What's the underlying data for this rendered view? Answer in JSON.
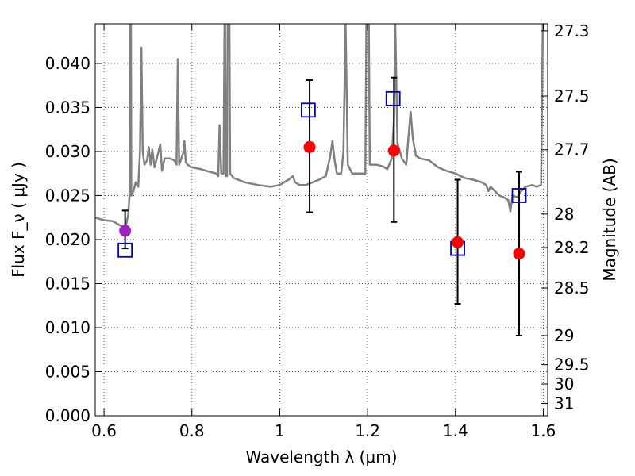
{
  "chart_data": {
    "type": "scatter",
    "xlabel": "Wavelength  λ (μm)",
    "ylabel": "Flux  F_ν  ( μJy )",
    "ylabel_right": "Magnitude (AB)",
    "xlim": [
      0.58,
      1.61
    ],
    "ylim": [
      0.0,
      0.0445
    ],
    "xticks": [
      0.6,
      0.8,
      1.0,
      1.2,
      1.4,
      1.6
    ],
    "xtick_labels": [
      "0.6",
      "0.8",
      "1",
      "1.2",
      "1.4",
      "1.6"
    ],
    "yticks": [
      0.0,
      0.005,
      0.01,
      0.015,
      0.02,
      0.025,
      0.03,
      0.035,
      0.04
    ],
    "ytick_labels": [
      "0.000",
      "0.005",
      "0.010",
      "0.015",
      "0.020",
      "0.025",
      "0.030",
      "0.035",
      "0.040"
    ],
    "right_ticks": [
      {
        "label": "27.3",
        "flux": 0.0437
      },
      {
        "label": "27.5",
        "flux": 0.0363
      },
      {
        "label": "27.7",
        "flux": 0.0302
      },
      {
        "label": "28",
        "flux": 0.0229
      },
      {
        "label": "28.2",
        "flux": 0.0191
      },
      {
        "label": "28.5",
        "flux": 0.0145
      },
      {
        "label": "29",
        "flux": 0.0091
      },
      {
        "label": "29.5",
        "flux": 0.0058
      },
      {
        "label": "30",
        "flux": 0.0036
      },
      {
        "label": "31",
        "flux": 0.0014
      }
    ],
    "grid": true,
    "series": [
      {
        "kind": "line",
        "color": "#808080",
        "points": [
          [
            0.58,
            0.0225
          ],
          [
            0.6,
            0.0222
          ],
          [
            0.62,
            0.0221
          ],
          [
            0.64,
            0.0215
          ],
          [
            0.645,
            0.0212
          ],
          [
            0.65,
            0.0216
          ],
          [
            0.655,
            0.0228
          ],
          [
            0.658,
            0.025
          ],
          [
            0.659,
            0.05
          ],
          [
            0.661,
            0.05
          ],
          [
            0.662,
            0.025
          ],
          [
            0.667,
            0.0255
          ],
          [
            0.672,
            0.0265
          ],
          [
            0.678,
            0.026
          ],
          [
            0.682,
            0.03
          ],
          [
            0.685,
            0.0418
          ],
          [
            0.688,
            0.03
          ],
          [
            0.692,
            0.0285
          ],
          [
            0.698,
            0.029
          ],
          [
            0.702,
            0.0305
          ],
          [
            0.706,
            0.0285
          ],
          [
            0.71,
            0.0302
          ],
          [
            0.715,
            0.0282
          ],
          [
            0.72,
            0.0292
          ],
          [
            0.725,
            0.0302
          ],
          [
            0.728,
            0.0308
          ],
          [
            0.732,
            0.0278
          ],
          [
            0.738,
            0.0292
          ],
          [
            0.75,
            0.0292
          ],
          [
            0.76,
            0.029
          ],
          [
            0.765,
            0.0285
          ],
          [
            0.768,
            0.0405
          ],
          [
            0.771,
            0.0285
          ],
          [
            0.776,
            0.0292
          ],
          [
            0.78,
            0.0298
          ],
          [
            0.783,
            0.0312
          ],
          [
            0.786,
            0.0288
          ],
          [
            0.79,
            0.0285
          ],
          [
            0.8,
            0.0282
          ],
          [
            0.82,
            0.028
          ],
          [
            0.84,
            0.0277
          ],
          [
            0.855,
            0.0275
          ],
          [
            0.86,
            0.0272
          ],
          [
            0.863,
            0.033
          ],
          [
            0.867,
            0.0275
          ],
          [
            0.872,
            0.0275
          ],
          [
            0.875,
            0.05
          ],
          [
            0.877,
            0.0272
          ],
          [
            0.88,
            0.0272
          ],
          [
            0.882,
            0.05
          ],
          [
            0.885,
            0.05
          ],
          [
            0.887,
            0.0275
          ],
          [
            0.895,
            0.027
          ],
          [
            0.92,
            0.0265
          ],
          [
            0.95,
            0.0262
          ],
          [
            0.98,
            0.026
          ],
          [
            1.0,
            0.0262
          ],
          [
            1.02,
            0.0268
          ],
          [
            1.03,
            0.0272
          ],
          [
            1.035,
            0.0265
          ],
          [
            1.045,
            0.0262
          ],
          [
            1.06,
            0.0262
          ],
          [
            1.075,
            0.0265
          ],
          [
            1.09,
            0.0268
          ],
          [
            1.105,
            0.0272
          ],
          [
            1.115,
            0.0295
          ],
          [
            1.12,
            0.0312
          ],
          [
            1.125,
            0.029
          ],
          [
            1.13,
            0.0275
          ],
          [
            1.14,
            0.0275
          ],
          [
            1.145,
            0.03
          ],
          [
            1.15,
            0.0445
          ],
          [
            1.155,
            0.0285
          ],
          [
            1.165,
            0.0275
          ],
          [
            1.18,
            0.0275
          ],
          [
            1.195,
            0.0275
          ],
          [
            1.198,
            0.05
          ],
          [
            1.202,
            0.05
          ],
          [
            1.205,
            0.0285
          ],
          [
            1.22,
            0.0285
          ],
          [
            1.235,
            0.0283
          ],
          [
            1.245,
            0.028
          ],
          [
            1.255,
            0.0292
          ],
          [
            1.26,
            0.0335
          ],
          [
            1.263,
            0.0445
          ],
          [
            1.268,
            0.031
          ],
          [
            1.278,
            0.0292
          ],
          [
            1.288,
            0.0285
          ],
          [
            1.292,
            0.031
          ],
          [
            1.298,
            0.0345
          ],
          [
            1.303,
            0.0315
          ],
          [
            1.31,
            0.0295
          ],
          [
            1.32,
            0.0292
          ],
          [
            1.34,
            0.029
          ],
          [
            1.36,
            0.0282
          ],
          [
            1.38,
            0.0278
          ],
          [
            1.4,
            0.0275
          ],
          [
            1.42,
            0.027
          ],
          [
            1.44,
            0.0268
          ],
          [
            1.46,
            0.0265
          ],
          [
            1.47,
            0.0262
          ],
          [
            1.475,
            0.0255
          ],
          [
            1.48,
            0.026
          ],
          [
            1.5,
            0.025
          ],
          [
            1.51,
            0.0248
          ],
          [
            1.52,
            0.0245
          ],
          [
            1.525,
            0.0232
          ],
          [
            1.53,
            0.025
          ],
          [
            1.54,
            0.0248
          ],
          [
            1.55,
            0.0255
          ],
          [
            1.56,
            0.026
          ],
          [
            1.575,
            0.0262
          ],
          [
            1.585,
            0.026
          ],
          [
            1.595,
            0.0262
          ],
          [
            1.6,
            0.05
          ],
          [
            1.605,
            0.05
          ]
        ]
      },
      {
        "kind": "marker",
        "marker": "open-square",
        "color": "#0000cc",
        "points": [
          {
            "x": 0.648,
            "y": 0.0188
          },
          {
            "x": 1.065,
            "y": 0.0347
          },
          {
            "x": 1.258,
            "y": 0.036
          },
          {
            "x": 1.405,
            "y": 0.019
          },
          {
            "x": 1.545,
            "y": 0.025
          }
        ]
      },
      {
        "kind": "marker",
        "marker": "filled-circle",
        "color": "#ff0000",
        "points": [
          {
            "x": 0.648,
            "y": 0.021,
            "ylo": 0.019,
            "yhi": 0.0233,
            "color": "#a020c0"
          },
          {
            "x": 1.068,
            "y": 0.0305,
            "ylo": 0.0231,
            "yhi": 0.0381
          },
          {
            "x": 1.26,
            "y": 0.0301,
            "ylo": 0.022,
            "yhi": 0.0384
          },
          {
            "x": 1.405,
            "y": 0.0197,
            "ylo": 0.0127,
            "yhi": 0.0268
          },
          {
            "x": 1.545,
            "y": 0.0184,
            "ylo": 0.0091,
            "yhi": 0.0277
          }
        ]
      }
    ]
  }
}
